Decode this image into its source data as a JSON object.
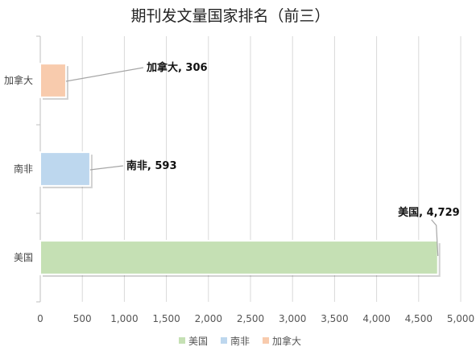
{
  "chart_data": {
    "type": "bar",
    "orientation": "horizontal",
    "title": "期刊发文量国家排名（前三）",
    "categories": [
      "美国",
      "南非",
      "加拿大"
    ],
    "values": [
      4729,
      593,
      306
    ],
    "value_labels": [
      "美国, 4,729",
      "南非, 593",
      "加拿大, 306"
    ],
    "xlim": [
      0,
      5000
    ],
    "xticks": [
      "0",
      "500",
      "1,000",
      "1,500",
      "2,000",
      "2,500",
      "3,000",
      "3,500",
      "4,000",
      "4,500",
      "5,000"
    ],
    "grid": true,
    "legend": {
      "position": "bottom",
      "entries": [
        "美国",
        "南非",
        "加拿大"
      ]
    },
    "colors": {
      "美国": "#c5e0b4",
      "南非": "#bdd7ee",
      "加拿大": "#f8cbad"
    }
  }
}
